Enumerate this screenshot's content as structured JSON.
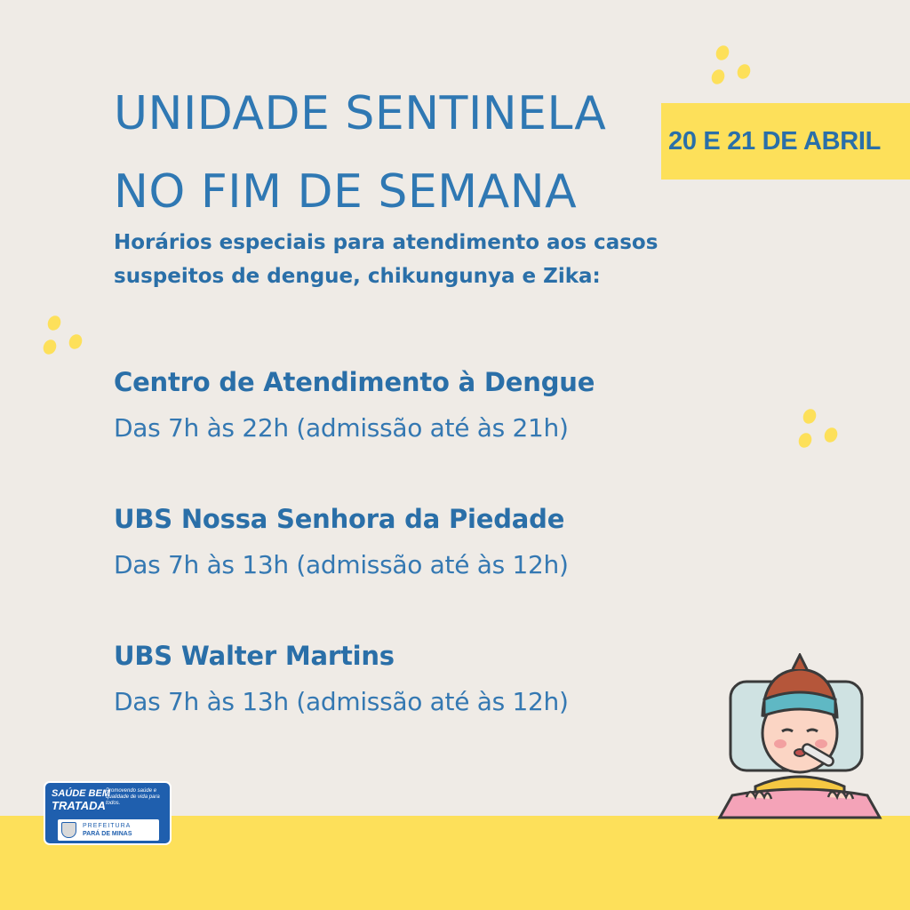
{
  "title": {
    "line1": "UNIDADE SENTINELA",
    "line2": "NO FIM DE SEMANA"
  },
  "date_badge": "20 E 21 DE ABRIL",
  "subtitle": {
    "line1": "Horários especiais para atendimento aos casos",
    "line2": "suspeitos de dengue, chikungunya e Zika:"
  },
  "locations": [
    {
      "name": "Centro de Atendimento à Dengue",
      "hours": "Das 7h às 22h (admissão até às 21h)"
    },
    {
      "name": "UBS Nossa Senhora da Piedade",
      "hours": "Das 7h às 13h (admissão até às 12h)"
    },
    {
      "name": "UBS Walter Martins",
      "hours": "Das 7h às 13h (admissão até às 12h)"
    }
  ],
  "logo": {
    "line1": "SAÚDE BEM",
    "line2": "TRATADA",
    "tagline": "Promovendo saúde e qualidade de vida para todos.",
    "pref1": "PREFEITURA",
    "pref2": "PARÁ DE MINAS"
  },
  "colors": {
    "background": "#efebe6",
    "accent_yellow": "#fde05a",
    "text_blue": "#2a6fa8",
    "logo_blue": "#1f5fae"
  },
  "icons": [
    "sick-person-thermometer-illustration",
    "decorative-dots"
  ]
}
